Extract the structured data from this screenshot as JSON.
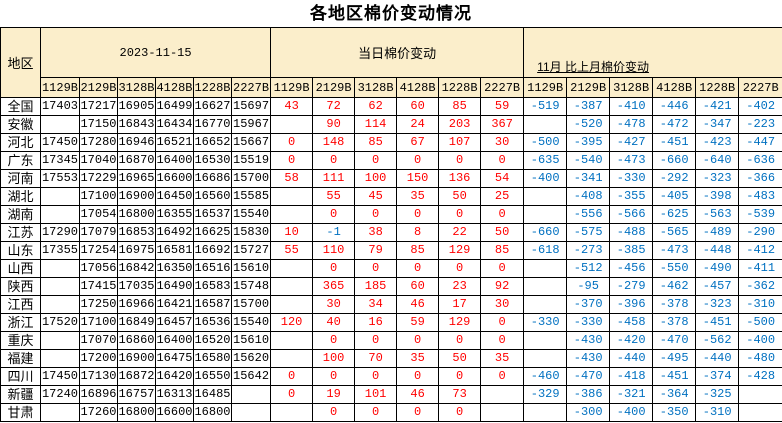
{
  "title": "各地区棉价变动情况",
  "colors": {
    "header_bg": "#FBEECB",
    "positive_change": "#FF0000",
    "negative_change": "#0070C0",
    "price_text": "#000000",
    "border": "#000000"
  },
  "table": {
    "region_header": "地区",
    "groups": [
      {
        "label": "2023-11-15",
        "columns": [
          "1129B",
          "2129B",
          "3128B",
          "4128B",
          "1228B",
          "2227B"
        ]
      },
      {
        "label": "当日棉价变动",
        "columns": [
          "1129B",
          "2129B",
          "3128B",
          "4128B",
          "1228B",
          "2227B"
        ]
      },
      {
        "label": "11月 比上月棉价变动",
        "columns": [
          "1129B",
          "2129B",
          "3128B",
          "4128B",
          "1228B",
          "2227B"
        ]
      }
    ],
    "rows": [
      {
        "region": "全国",
        "price": [
          "17403",
          "17217",
          "16905",
          "16499",
          "16627",
          "15697"
        ],
        "daily": [
          "43",
          "72",
          "62",
          "60",
          "85",
          "59"
        ],
        "monthly": [
          "-519",
          "-387",
          "-410",
          "-446",
          "-421",
          "-402"
        ]
      },
      {
        "region": "安徽",
        "price": [
          "",
          "17150",
          "16843",
          "16434",
          "16770",
          "15967"
        ],
        "daily": [
          "",
          "90",
          "114",
          "24",
          "203",
          "367"
        ],
        "monthly": [
          "",
          "-520",
          "-478",
          "-472",
          "-347",
          "-223"
        ]
      },
      {
        "region": "河北",
        "price": [
          "17450",
          "17280",
          "16946",
          "16521",
          "16652",
          "15667"
        ],
        "daily": [
          "0",
          "148",
          "85",
          "67",
          "107",
          "30"
        ],
        "monthly": [
          "-500",
          "-395",
          "-427",
          "-451",
          "-423",
          "-447"
        ]
      },
      {
        "region": "广东",
        "price": [
          "17345",
          "17040",
          "16870",
          "16400",
          "16530",
          "15519"
        ],
        "daily": [
          "0",
          "0",
          "0",
          "0",
          "0",
          "0"
        ],
        "monthly": [
          "-635",
          "-540",
          "-473",
          "-660",
          "-640",
          "-636"
        ]
      },
      {
        "region": "河南",
        "price": [
          "17553",
          "17229",
          "16965",
          "16600",
          "16686",
          "15700"
        ],
        "daily": [
          "58",
          "111",
          "100",
          "150",
          "136",
          "54"
        ],
        "monthly": [
          "-400",
          "-341",
          "-330",
          "-292",
          "-323",
          "-366"
        ]
      },
      {
        "region": "湖北",
        "price": [
          "",
          "17100",
          "16900",
          "16450",
          "16560",
          "15585"
        ],
        "daily": [
          "",
          "55",
          "45",
          "35",
          "50",
          "25"
        ],
        "monthly": [
          "",
          "-408",
          "-355",
          "-405",
          "-398",
          "-483"
        ]
      },
      {
        "region": "湖南",
        "price": [
          "",
          "17054",
          "16800",
          "16355",
          "16537",
          "15540"
        ],
        "daily": [
          "",
          "0",
          "0",
          "0",
          "0",
          "0"
        ],
        "monthly": [
          "",
          "-556",
          "-566",
          "-625",
          "-563",
          "-539"
        ]
      },
      {
        "region": "江苏",
        "price": [
          "17290",
          "17079",
          "16853",
          "16492",
          "16625",
          "15830"
        ],
        "daily": [
          "10",
          "-1",
          "38",
          "8",
          "22",
          "50"
        ],
        "monthly": [
          "-660",
          "-575",
          "-488",
          "-565",
          "-489",
          "-290"
        ]
      },
      {
        "region": "山东",
        "price": [
          "17355",
          "17254",
          "16975",
          "16581",
          "16692",
          "15727"
        ],
        "daily": [
          "55",
          "110",
          "79",
          "85",
          "129",
          "85"
        ],
        "monthly": [
          "-618",
          "-273",
          "-385",
          "-473",
          "-448",
          "-412"
        ]
      },
      {
        "region": "山西",
        "price": [
          "",
          "17056",
          "16842",
          "16350",
          "16516",
          "15610"
        ],
        "daily": [
          "",
          "0",
          "0",
          "0",
          "0",
          "0"
        ],
        "monthly": [
          "",
          "-512",
          "-456",
          "-550",
          "-490",
          "-411"
        ]
      },
      {
        "region": "陕西",
        "price": [
          "",
          "17415",
          "17035",
          "16490",
          "16583",
          "15748"
        ],
        "daily": [
          "",
          "365",
          "185",
          "60",
          "23",
          "92"
        ],
        "monthly": [
          "",
          "-95",
          "-279",
          "-462",
          "-457",
          "-362"
        ]
      },
      {
        "region": "江西",
        "price": [
          "",
          "17250",
          "16966",
          "16421",
          "16587",
          "15700"
        ],
        "daily": [
          "",
          "30",
          "34",
          "46",
          "17",
          "30"
        ],
        "monthly": [
          "",
          "-370",
          "-396",
          "-378",
          "-323",
          "-310"
        ]
      },
      {
        "region": "浙江",
        "price": [
          "17520",
          "17100",
          "16849",
          "16457",
          "16536",
          "15540"
        ],
        "daily": [
          "120",
          "40",
          "16",
          "59",
          "129",
          "0"
        ],
        "monthly": [
          "-330",
          "-330",
          "-458",
          "-378",
          "-451",
          "-500"
        ]
      },
      {
        "region": "重庆",
        "price": [
          "",
          "17070",
          "16860",
          "16400",
          "16520",
          "15610"
        ],
        "daily": [
          "",
          "0",
          "0",
          "0",
          "0",
          "0"
        ],
        "monthly": [
          "",
          "-430",
          "-420",
          "-470",
          "-562",
          "-400"
        ]
      },
      {
        "region": "福建",
        "price": [
          "",
          "17200",
          "16900",
          "16475",
          "16580",
          "15620"
        ],
        "daily": [
          "",
          "100",
          "70",
          "35",
          "50",
          "35"
        ],
        "monthly": [
          "",
          "-430",
          "-440",
          "-495",
          "-440",
          "-480"
        ]
      },
      {
        "region": "四川",
        "price": [
          "17450",
          "17130",
          "16872",
          "16420",
          "16550",
          "15642"
        ],
        "daily": [
          "0",
          "0",
          "0",
          "0",
          "0",
          "0"
        ],
        "monthly": [
          "-460",
          "-470",
          "-418",
          "-451",
          "-374",
          "-428"
        ]
      },
      {
        "region": "新疆",
        "price": [
          "17240",
          "16896",
          "16757",
          "16313",
          "16485",
          ""
        ],
        "daily": [
          "0",
          "19",
          "101",
          "46",
          "73",
          ""
        ],
        "monthly": [
          "-329",
          "-386",
          "-321",
          "-364",
          "-325",
          ""
        ]
      },
      {
        "region": "甘肃",
        "price": [
          "",
          "17260",
          "16800",
          "16600",
          "16800",
          ""
        ],
        "daily": [
          "",
          "0",
          "0",
          "0",
          "0",
          ""
        ],
        "monthly": [
          "",
          "-300",
          "-400",
          "-350",
          "-310",
          ""
        ]
      }
    ]
  }
}
